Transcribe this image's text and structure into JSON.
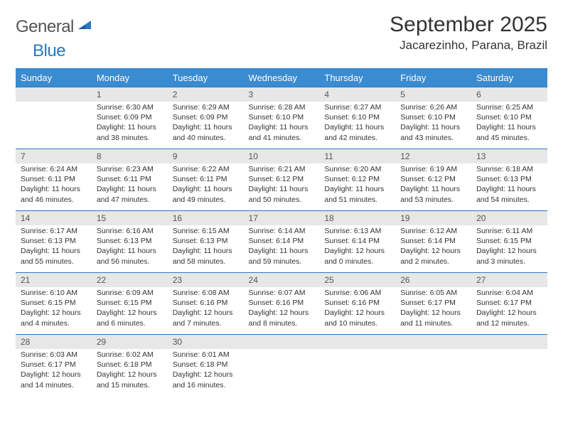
{
  "logo": {
    "general": "General",
    "blue": "Blue"
  },
  "title": "September 2025",
  "location": "Jacarezinho, Parana, Brazil",
  "colors": {
    "header_bg": "#3b8bd0",
    "header_border": "#2a78c2",
    "daynum_band": "#e7e7e7",
    "text": "#333333",
    "logo_gray": "#6a6a6a",
    "logo_blue": "#2a78c2"
  },
  "weekdays": [
    "Sunday",
    "Monday",
    "Tuesday",
    "Wednesday",
    "Thursday",
    "Friday",
    "Saturday"
  ],
  "weeks": [
    [
      null,
      {
        "n": "1",
        "sunrise": "Sunrise: 6:30 AM",
        "sunset": "Sunset: 6:09 PM",
        "daylight": "Daylight: 11 hours and 38 minutes."
      },
      {
        "n": "2",
        "sunrise": "Sunrise: 6:29 AM",
        "sunset": "Sunset: 6:09 PM",
        "daylight": "Daylight: 11 hours and 40 minutes."
      },
      {
        "n": "3",
        "sunrise": "Sunrise: 6:28 AM",
        "sunset": "Sunset: 6:10 PM",
        "daylight": "Daylight: 11 hours and 41 minutes."
      },
      {
        "n": "4",
        "sunrise": "Sunrise: 6:27 AM",
        "sunset": "Sunset: 6:10 PM",
        "daylight": "Daylight: 11 hours and 42 minutes."
      },
      {
        "n": "5",
        "sunrise": "Sunrise: 6:26 AM",
        "sunset": "Sunset: 6:10 PM",
        "daylight": "Daylight: 11 hours and 43 minutes."
      },
      {
        "n": "6",
        "sunrise": "Sunrise: 6:25 AM",
        "sunset": "Sunset: 6:10 PM",
        "daylight": "Daylight: 11 hours and 45 minutes."
      }
    ],
    [
      {
        "n": "7",
        "sunrise": "Sunrise: 6:24 AM",
        "sunset": "Sunset: 6:11 PM",
        "daylight": "Daylight: 11 hours and 46 minutes."
      },
      {
        "n": "8",
        "sunrise": "Sunrise: 6:23 AM",
        "sunset": "Sunset: 6:11 PM",
        "daylight": "Daylight: 11 hours and 47 minutes."
      },
      {
        "n": "9",
        "sunrise": "Sunrise: 6:22 AM",
        "sunset": "Sunset: 6:11 PM",
        "daylight": "Daylight: 11 hours and 49 minutes."
      },
      {
        "n": "10",
        "sunrise": "Sunrise: 6:21 AM",
        "sunset": "Sunset: 6:12 PM",
        "daylight": "Daylight: 11 hours and 50 minutes."
      },
      {
        "n": "11",
        "sunrise": "Sunrise: 6:20 AM",
        "sunset": "Sunset: 6:12 PM",
        "daylight": "Daylight: 11 hours and 51 minutes."
      },
      {
        "n": "12",
        "sunrise": "Sunrise: 6:19 AM",
        "sunset": "Sunset: 6:12 PM",
        "daylight": "Daylight: 11 hours and 53 minutes."
      },
      {
        "n": "13",
        "sunrise": "Sunrise: 6:18 AM",
        "sunset": "Sunset: 6:13 PM",
        "daylight": "Daylight: 11 hours and 54 minutes."
      }
    ],
    [
      {
        "n": "14",
        "sunrise": "Sunrise: 6:17 AM",
        "sunset": "Sunset: 6:13 PM",
        "daylight": "Daylight: 11 hours and 55 minutes."
      },
      {
        "n": "15",
        "sunrise": "Sunrise: 6:16 AM",
        "sunset": "Sunset: 6:13 PM",
        "daylight": "Daylight: 11 hours and 56 minutes."
      },
      {
        "n": "16",
        "sunrise": "Sunrise: 6:15 AM",
        "sunset": "Sunset: 6:13 PM",
        "daylight": "Daylight: 11 hours and 58 minutes."
      },
      {
        "n": "17",
        "sunrise": "Sunrise: 6:14 AM",
        "sunset": "Sunset: 6:14 PM",
        "daylight": "Daylight: 11 hours and 59 minutes."
      },
      {
        "n": "18",
        "sunrise": "Sunrise: 6:13 AM",
        "sunset": "Sunset: 6:14 PM",
        "daylight": "Daylight: 12 hours and 0 minutes."
      },
      {
        "n": "19",
        "sunrise": "Sunrise: 6:12 AM",
        "sunset": "Sunset: 6:14 PM",
        "daylight": "Daylight: 12 hours and 2 minutes."
      },
      {
        "n": "20",
        "sunrise": "Sunrise: 6:11 AM",
        "sunset": "Sunset: 6:15 PM",
        "daylight": "Daylight: 12 hours and 3 minutes."
      }
    ],
    [
      {
        "n": "21",
        "sunrise": "Sunrise: 6:10 AM",
        "sunset": "Sunset: 6:15 PM",
        "daylight": "Daylight: 12 hours and 4 minutes."
      },
      {
        "n": "22",
        "sunrise": "Sunrise: 6:09 AM",
        "sunset": "Sunset: 6:15 PM",
        "daylight": "Daylight: 12 hours and 6 minutes."
      },
      {
        "n": "23",
        "sunrise": "Sunrise: 6:08 AM",
        "sunset": "Sunset: 6:16 PM",
        "daylight": "Daylight: 12 hours and 7 minutes."
      },
      {
        "n": "24",
        "sunrise": "Sunrise: 6:07 AM",
        "sunset": "Sunset: 6:16 PM",
        "daylight": "Daylight: 12 hours and 8 minutes."
      },
      {
        "n": "25",
        "sunrise": "Sunrise: 6:06 AM",
        "sunset": "Sunset: 6:16 PM",
        "daylight": "Daylight: 12 hours and 10 minutes."
      },
      {
        "n": "26",
        "sunrise": "Sunrise: 6:05 AM",
        "sunset": "Sunset: 6:17 PM",
        "daylight": "Daylight: 12 hours and 11 minutes."
      },
      {
        "n": "27",
        "sunrise": "Sunrise: 6:04 AM",
        "sunset": "Sunset: 6:17 PM",
        "daylight": "Daylight: 12 hours and 12 minutes."
      }
    ],
    [
      {
        "n": "28",
        "sunrise": "Sunrise: 6:03 AM",
        "sunset": "Sunset: 6:17 PM",
        "daylight": "Daylight: 12 hours and 14 minutes."
      },
      {
        "n": "29",
        "sunrise": "Sunrise: 6:02 AM",
        "sunset": "Sunset: 6:18 PM",
        "daylight": "Daylight: 12 hours and 15 minutes."
      },
      {
        "n": "30",
        "sunrise": "Sunrise: 6:01 AM",
        "sunset": "Sunset: 6:18 PM",
        "daylight": "Daylight: 12 hours and 16 minutes."
      },
      null,
      null,
      null,
      null
    ]
  ]
}
